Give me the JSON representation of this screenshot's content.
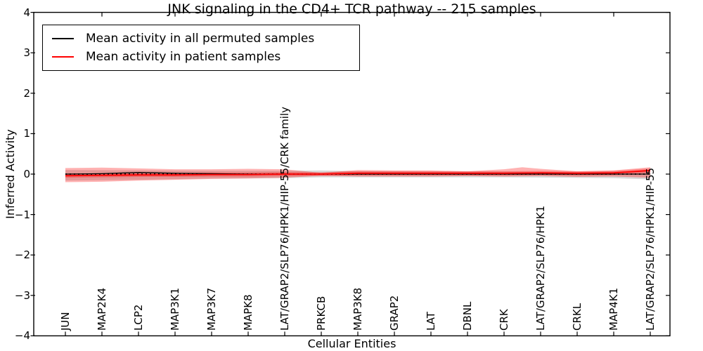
{
  "title": "JNK signaling in the CD4+ TCR pathway -- 215 samples",
  "legend": {
    "items": [
      {
        "label": "Mean activity in all permuted samples",
        "color": "#000000"
      },
      {
        "label": "Mean activity in patient samples",
        "color": "#ff0000"
      }
    ],
    "position": "upper left"
  },
  "chart_data": {
    "type": "line",
    "title": "JNK signaling in the CD4+ TCR pathway -- 215 samples",
    "xlabel": "Cellular Entities",
    "ylabel": "Inferred Activity",
    "ylim": [
      -4,
      4
    ],
    "ytick_labels": [
      "4",
      "3",
      "2",
      "1",
      "0",
      "−1",
      "−2",
      "−3",
      "−4"
    ],
    "ytick_values": [
      4,
      3,
      2,
      1,
      0,
      -1,
      -2,
      -3,
      -4
    ],
    "grid": false,
    "categories": [
      "JUN",
      "MAP2K4",
      "LCP2",
      "MAP3K1",
      "MAP3K7",
      "MAPK8",
      "LAT/GRAP2/SLP76/HPK1/HIP-55/CRK family",
      "PRKCB",
      "MAP3K8",
      "GRAP2",
      "LAT",
      "DBNL",
      "CRK",
      "LAT/GRAP2/SLP76/HPK1",
      "CRKL",
      "MAP4K1",
      "LAT/GRAP2/SLP76/HPK1/HIP-55"
    ],
    "series": [
      {
        "name": "Mean activity in all permuted samples",
        "color": "#000000",
        "values": [
          0.0,
          0.01,
          0.04,
          0.02,
          0.01,
          0.0,
          0.0,
          0.0,
          0.0,
          0.0,
          0.0,
          0.0,
          0.0,
          0.0,
          0.0,
          0.0,
          0.0
        ]
      },
      {
        "name": "Mean activity in patient samples",
        "color": "#ff0000",
        "values": [
          -0.04,
          -0.03,
          -0.02,
          -0.02,
          -0.01,
          -0.01,
          0.0,
          0.0,
          0.02,
          0.02,
          0.02,
          0.02,
          0.02,
          0.03,
          0.02,
          0.03,
          0.09
        ]
      }
    ],
    "zero_line": {
      "y": 0,
      "style": "dotted",
      "color": "#000000"
    },
    "bands": [
      {
        "name": "permuted-std-band",
        "color": "#888888",
        "alpha": 0.32,
        "upper": [
          [
            0,
            0.1
          ],
          [
            2,
            0.09
          ],
          [
            4,
            0.08
          ],
          [
            6,
            0.08
          ],
          [
            7,
            0.09
          ],
          [
            8,
            0.07
          ],
          [
            10,
            0.06
          ],
          [
            12,
            0.06
          ],
          [
            14,
            0.05
          ],
          [
            15,
            0.06
          ],
          [
            16,
            0.09
          ]
        ],
        "lower": [
          [
            0,
            -0.16
          ],
          [
            2,
            -0.14
          ],
          [
            4,
            -0.11
          ],
          [
            6,
            -0.1
          ],
          [
            7,
            -0.08
          ],
          [
            8,
            -0.08
          ],
          [
            10,
            -0.08
          ],
          [
            12,
            -0.08
          ],
          [
            14,
            -0.09
          ],
          [
            15,
            -0.1
          ],
          [
            16,
            -0.13
          ]
        ]
      },
      {
        "name": "patient-std-band",
        "color": "#ff0000",
        "alpha": 0.3,
        "upper": [
          [
            0,
            0.15
          ],
          [
            1,
            0.16
          ],
          [
            2,
            0.14
          ],
          [
            3,
            0.12
          ],
          [
            4,
            0.12
          ],
          [
            5,
            0.13
          ],
          [
            6,
            0.12
          ],
          [
            7,
            0.03
          ],
          [
            8,
            0.1
          ],
          [
            9,
            0.09
          ],
          [
            10,
            0.09
          ],
          [
            11,
            0.07
          ],
          [
            12,
            0.12
          ],
          [
            12.5,
            0.17
          ],
          [
            13,
            0.13
          ],
          [
            14,
            0.07
          ],
          [
            15,
            0.09
          ],
          [
            16,
            0.17
          ]
        ],
        "lower": [
          [
            0,
            -0.2
          ],
          [
            1,
            -0.19
          ],
          [
            2,
            -0.16
          ],
          [
            3,
            -0.14
          ],
          [
            4,
            -0.12
          ],
          [
            5,
            -0.11
          ],
          [
            6,
            -0.09
          ],
          [
            7,
            -0.04
          ],
          [
            8,
            -0.06
          ],
          [
            9,
            -0.06
          ],
          [
            10,
            -0.06
          ],
          [
            11,
            -0.05
          ],
          [
            12,
            -0.06
          ],
          [
            13,
            -0.05
          ],
          [
            14,
            -0.07
          ],
          [
            15,
            -0.06
          ],
          [
            16,
            -0.09
          ]
        ]
      },
      {
        "name": "patient-core-band",
        "color": "#ff0000",
        "alpha": 0.28,
        "half_width_around_patient_mean": 0.05
      }
    ]
  }
}
